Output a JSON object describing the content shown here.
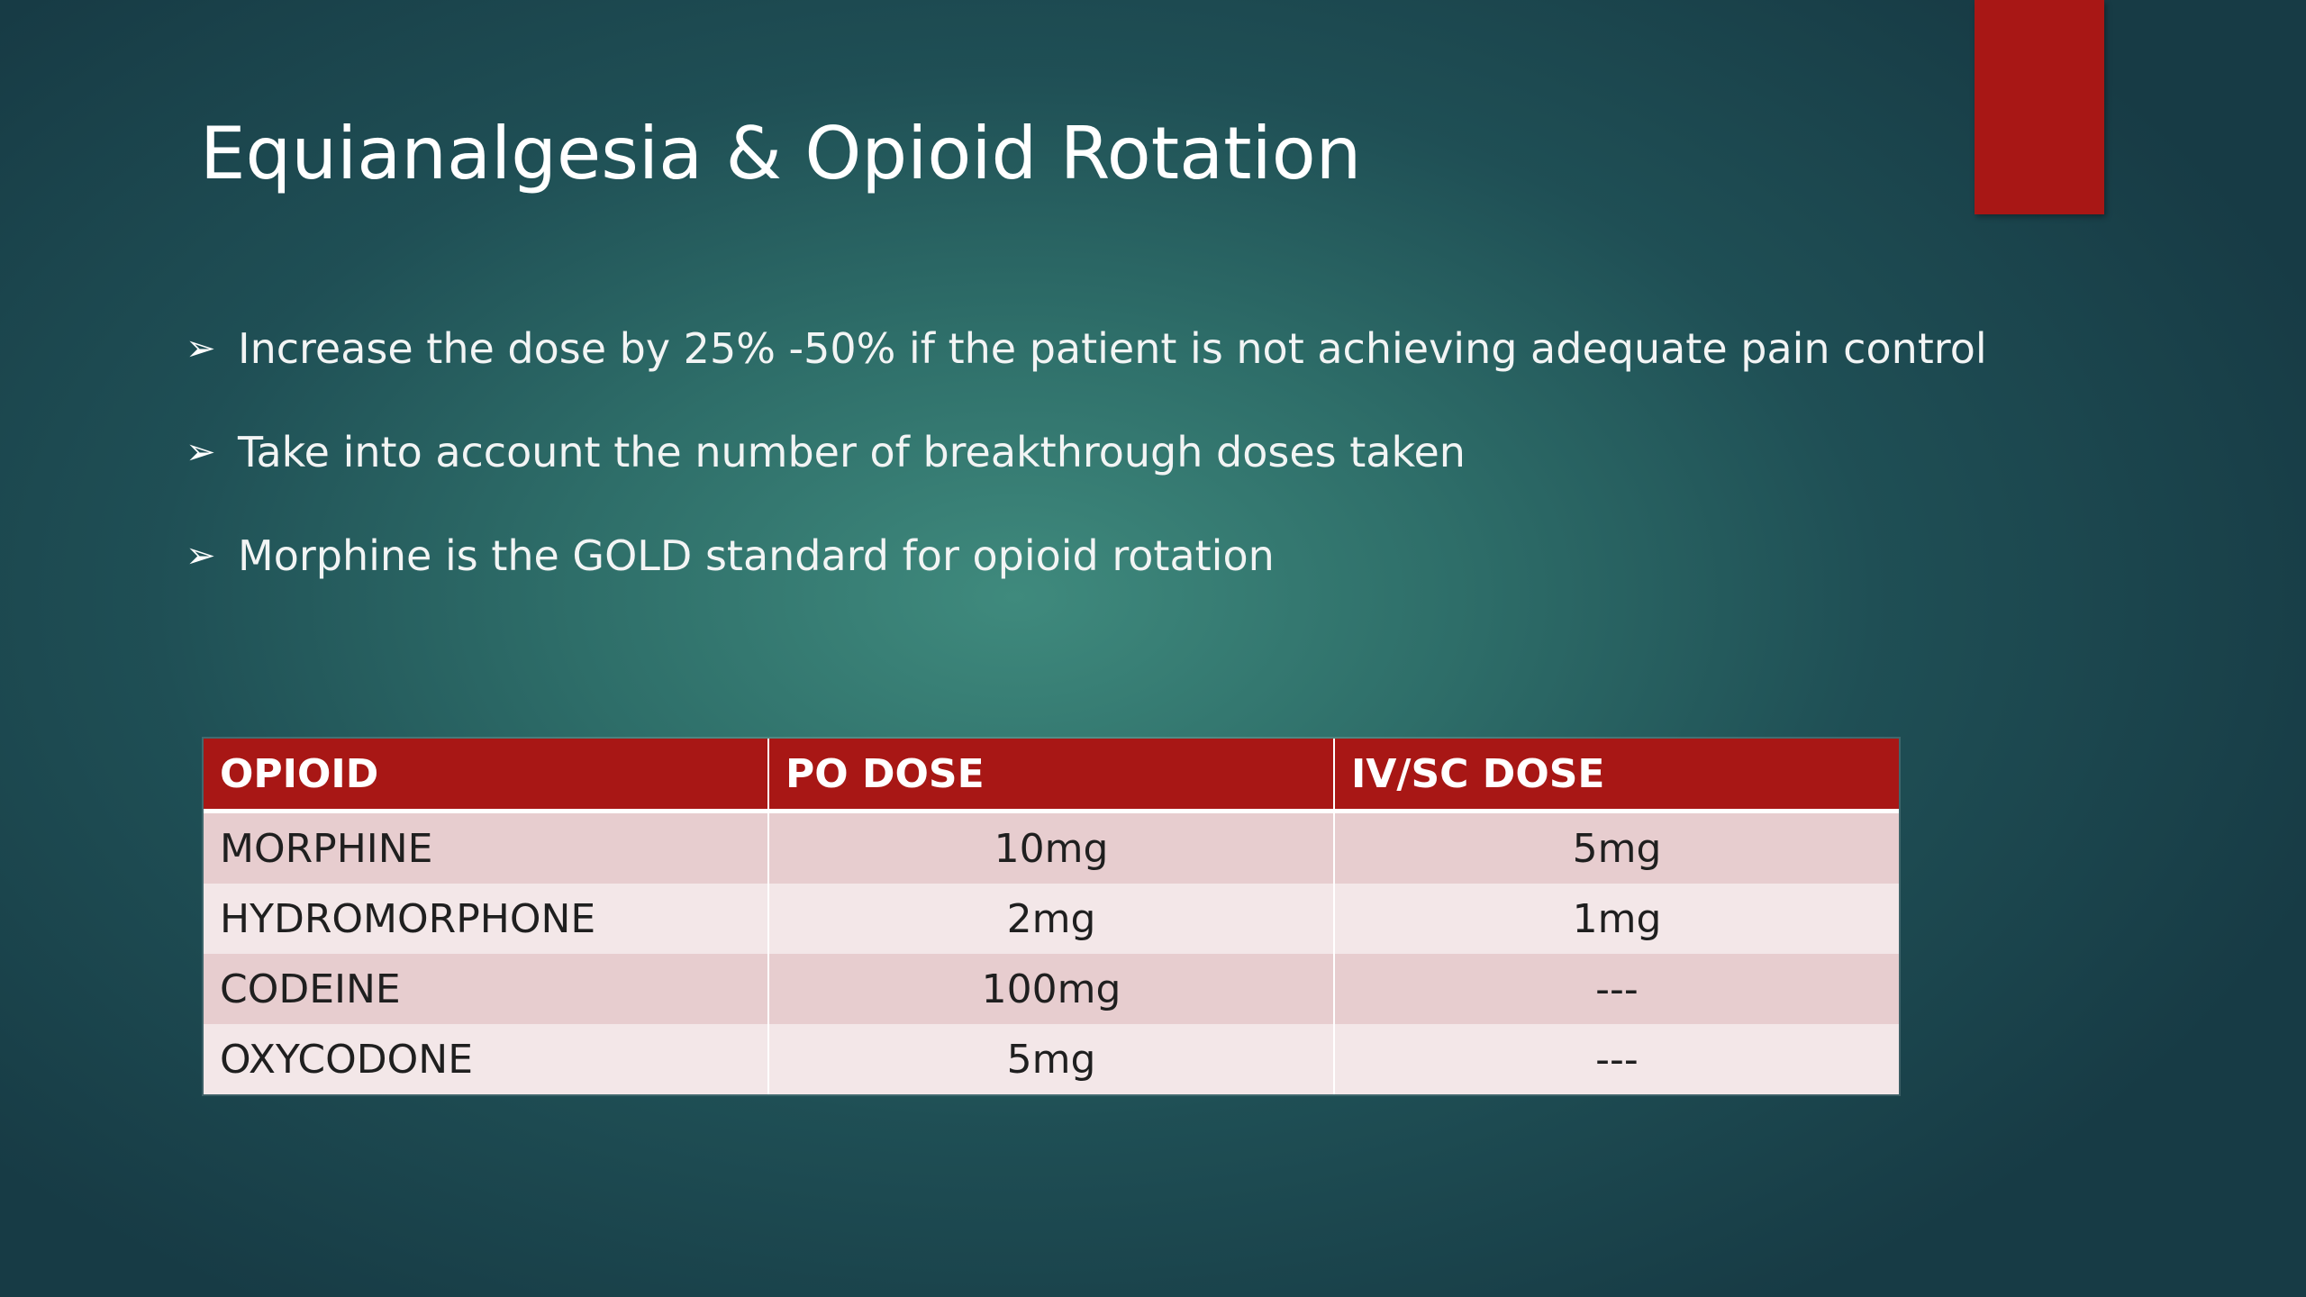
{
  "slide": {
    "title": "Equianalgesia & Opioid Rotation",
    "accent_color": "#a81715",
    "bullet_icon": "arrowhead-bullet-icon",
    "bullets": [
      "Increase the dose by 25% -50% if the patient is not achieving adequate pain control",
      "Take into account the number of breakthrough doses taken",
      "Morphine is the GOLD standard for opioid rotation"
    ]
  },
  "table": {
    "header_color": "#a81715",
    "headers": [
      "OPIOID",
      "PO DOSE",
      "IV/SC DOSE"
    ],
    "rows": [
      [
        "MORPHINE",
        "10mg",
        "5mg"
      ],
      [
        "HYDROMORPHONE",
        "2mg",
        "1mg"
      ],
      [
        "CODEINE",
        "100mg",
        "---"
      ],
      [
        "OXYCODONE",
        "5mg",
        "---"
      ]
    ]
  }
}
